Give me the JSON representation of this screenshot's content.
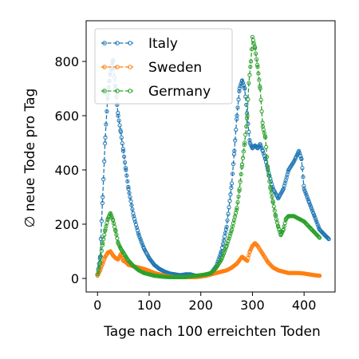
{
  "chart_data": {
    "type": "line",
    "title": "",
    "xlabel": "Tage nach 100 erreichten Toden",
    "ylabel": "∅ neue Tode pro Tag",
    "xlim": [
      -22,
      460
    ],
    "ylim": [
      -50,
      950
    ],
    "xticks": [
      0,
      100,
      200,
      300,
      400
    ],
    "yticks": [
      0,
      200,
      400,
      600,
      800
    ],
    "grid": false,
    "legend": "top-left",
    "series": [
      {
        "name": "Italy",
        "color": "#1f77b4",
        "points": [
          [
            0,
            15
          ],
          [
            5,
            80
          ],
          [
            10,
            300
          ],
          [
            15,
            520
          ],
          [
            20,
            680
          ],
          [
            25,
            760
          ],
          [
            30,
            805
          ],
          [
            35,
            700
          ],
          [
            40,
            600
          ],
          [
            45,
            540
          ],
          [
            50,
            470
          ],
          [
            55,
            400
          ],
          [
            60,
            330
          ],
          [
            70,
            230
          ],
          [
            80,
            160
          ],
          [
            90,
            110
          ],
          [
            100,
            75
          ],
          [
            110,
            50
          ],
          [
            120,
            35
          ],
          [
            130,
            25
          ],
          [
            140,
            18
          ],
          [
            150,
            15
          ],
          [
            160,
            12
          ],
          [
            170,
            15
          ],
          [
            180,
            15
          ],
          [
            190,
            10
          ],
          [
            200,
            10
          ],
          [
            210,
            12
          ],
          [
            220,
            20
          ],
          [
            230,
            45
          ],
          [
            240,
            100
          ],
          [
            250,
            190
          ],
          [
            260,
            350
          ],
          [
            265,
            470
          ],
          [
            270,
            600
          ],
          [
            275,
            700
          ],
          [
            280,
            730
          ],
          [
            285,
            700
          ],
          [
            290,
            600
          ],
          [
            295,
            500
          ],
          [
            300,
            480
          ],
          [
            305,
            490
          ],
          [
            310,
            480
          ],
          [
            315,
            495
          ],
          [
            320,
            470
          ],
          [
            325,
            440
          ],
          [
            330,
            400
          ],
          [
            340,
            330
          ],
          [
            350,
            295
          ],
          [
            360,
            330
          ],
          [
            370,
            400
          ],
          [
            380,
            430
          ],
          [
            390,
            470
          ],
          [
            395,
            440
          ],
          [
            400,
            330
          ],
          [
            410,
            280
          ],
          [
            420,
            230
          ],
          [
            430,
            180
          ],
          [
            440,
            160
          ],
          [
            448,
            145
          ]
        ]
      },
      {
        "name": "Sweden",
        "color": "#ff7f0e",
        "points": [
          [
            0,
            10
          ],
          [
            5,
            30
          ],
          [
            10,
            55
          ],
          [
            15,
            80
          ],
          [
            20,
            95
          ],
          [
            25,
            100
          ],
          [
            30,
            85
          ],
          [
            35,
            75
          ],
          [
            40,
            70
          ],
          [
            45,
            90
          ],
          [
            50,
            65
          ],
          [
            55,
            60
          ],
          [
            60,
            50
          ],
          [
            70,
            45
          ],
          [
            80,
            40
          ],
          [
            90,
            35
          ],
          [
            100,
            28
          ],
          [
            110,
            20
          ],
          [
            120,
            15
          ],
          [
            130,
            10
          ],
          [
            140,
            7
          ],
          [
            150,
            5
          ],
          [
            160,
            5
          ],
          [
            170,
            5
          ],
          [
            180,
            5
          ],
          [
            190,
            5
          ],
          [
            200,
            7
          ],
          [
            210,
            10
          ],
          [
            220,
            15
          ],
          [
            230,
            20
          ],
          [
            240,
            25
          ],
          [
            250,
            30
          ],
          [
            260,
            40
          ],
          [
            270,
            55
          ],
          [
            280,
            80
          ],
          [
            290,
            65
          ],
          [
            295,
            100
          ],
          [
            300,
            120
          ],
          [
            305,
            130
          ],
          [
            310,
            120
          ],
          [
            320,
            90
          ],
          [
            330,
            60
          ],
          [
            340,
            40
          ],
          [
            350,
            30
          ],
          [
            360,
            25
          ],
          [
            370,
            20
          ],
          [
            380,
            20
          ],
          [
            390,
            20
          ],
          [
            400,
            18
          ],
          [
            410,
            15
          ],
          [
            420,
            12
          ],
          [
            430,
            10
          ]
        ]
      },
      {
        "name": "Germany",
        "color": "#2ca02c",
        "points": [
          [
            0,
            15
          ],
          [
            5,
            60
          ],
          [
            10,
            130
          ],
          [
            15,
            180
          ],
          [
            20,
            220
          ],
          [
            25,
            240
          ],
          [
            30,
            215
          ],
          [
            35,
            175
          ],
          [
            40,
            130
          ],
          [
            45,
            110
          ],
          [
            50,
            95
          ],
          [
            55,
            80
          ],
          [
            60,
            65
          ],
          [
            70,
            45
          ],
          [
            80,
            30
          ],
          [
            90,
            20
          ],
          [
            100,
            15
          ],
          [
            110,
            10
          ],
          [
            120,
            8
          ],
          [
            130,
            6
          ],
          [
            140,
            5
          ],
          [
            150,
            5
          ],
          [
            160,
            5
          ],
          [
            170,
            5
          ],
          [
            180,
            8
          ],
          [
            190,
            10
          ],
          [
            200,
            12
          ],
          [
            210,
            15
          ],
          [
            220,
            20
          ],
          [
            230,
            40
          ],
          [
            240,
            70
          ],
          [
            250,
            120
          ],
          [
            260,
            180
          ],
          [
            270,
            260
          ],
          [
            275,
            330
          ],
          [
            280,
            420
          ],
          [
            285,
            500
          ],
          [
            290,
            600
          ],
          [
            293,
            720
          ],
          [
            297,
            800
          ],
          [
            300,
            890
          ],
          [
            305,
            850
          ],
          [
            310,
            780
          ],
          [
            315,
            700
          ],
          [
            320,
            560
          ],
          [
            325,
            520
          ],
          [
            330,
            400
          ],
          [
            335,
            330
          ],
          [
            340,
            280
          ],
          [
            345,
            230
          ],
          [
            350,
            190
          ],
          [
            355,
            160
          ],
          [
            360,
            180
          ],
          [
            365,
            220
          ],
          [
            370,
            230
          ],
          [
            380,
            230
          ],
          [
            390,
            220
          ],
          [
            400,
            210
          ],
          [
            410,
            190
          ],
          [
            420,
            170
          ],
          [
            430,
            150
          ]
        ]
      }
    ]
  }
}
